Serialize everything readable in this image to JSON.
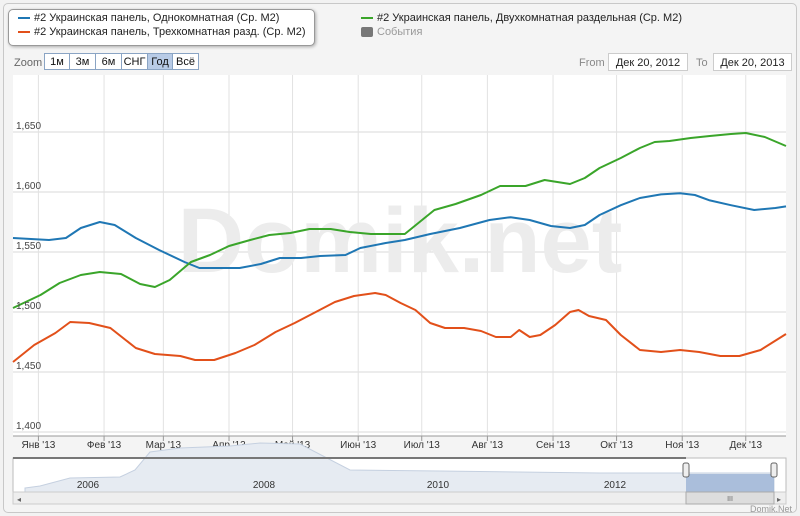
{
  "legend": {
    "series": [
      {
        "label": "#2 Украинская панель, Однокомнатная (Ср. М2)",
        "color": "#1f77b4"
      },
      {
        "label": "#2 Украинская панель, Двухкомнатная раздельная (Ср. М2)",
        "color": "#3aa52a"
      },
      {
        "label": "#2 Украинская панель, Трехкомнатная разд. (Ср. М2)",
        "color": "#e2501a"
      }
    ],
    "events_label": "События"
  },
  "zoom": {
    "label": "Zoom",
    "buttons": [
      "1м",
      "3м",
      "6м",
      "СНГ",
      "Год",
      "Всё"
    ],
    "active": "Год"
  },
  "range": {
    "from_label": "From",
    "from": "Дек 20, 2012",
    "to_label": "To",
    "to": "Дек 20, 2013"
  },
  "watermark": "Domik.net",
  "credit": "Domik.Net",
  "navigator": {
    "year_labels": [
      "2006",
      "2008",
      "2010",
      "2012"
    ]
  },
  "chart_data": {
    "type": "line",
    "x_unit": "days since Дек 20, 2012",
    "xlim": [
      0,
      365
    ],
    "ylim": [
      1400,
      1700
    ],
    "yticks": [
      1400,
      1450,
      1500,
      1550,
      1600,
      1650
    ],
    "ytick_labels": [
      "1,400",
      "1,450",
      "1,500",
      "1,550",
      "1,600",
      "1,650"
    ],
    "xticks": [
      12,
      43,
      71,
      102,
      132,
      163,
      193,
      224,
      255,
      285,
      316,
      346
    ],
    "xtick_labels": [
      "Янв '13",
      "Фев '13",
      "Мар '13",
      "Апр '13",
      "Май '13",
      "Июн '13",
      "Июл '13",
      "Авг '13",
      "Сен '13",
      "Окт '13",
      "Ноя '13",
      "Дек '13"
    ],
    "grid": true,
    "series": [
      {
        "name": "#2 Украинская панель, Однокомнатная (Ср. М2)",
        "color": "#1f77b4",
        "x": [
          0,
          17,
          25,
          32,
          41,
          48,
          58,
          69,
          81,
          88,
          95,
          107,
          117,
          126,
          136,
          145,
          157,
          164,
          176,
          185,
          197,
          211,
          225,
          235,
          244,
          254,
          263,
          270,
          277,
          287,
          296,
          306,
          315,
          322,
          329,
          339,
          350,
          360,
          365
        ],
        "y": [
          1561.7,
          1560,
          1561.7,
          1570,
          1575,
          1572.5,
          1561.7,
          1551.7,
          1541.7,
          1536.7,
          1536.7,
          1536.7,
          1540,
          1545,
          1545,
          1546.7,
          1547.5,
          1553.3,
          1557.5,
          1560,
          1565,
          1570,
          1576.7,
          1579,
          1576.7,
          1571.7,
          1570,
          1572.5,
          1580.8,
          1589,
          1595,
          1598,
          1599,
          1597.5,
          1593,
          1589,
          1585,
          1586.7,
          1588
        ]
      },
      {
        "name": "#2 Украинская панель, Двухкомнатная раздельная (Ср. М2)",
        "color": "#3aa52a",
        "x": [
          0,
          13,
          22,
          32,
          41,
          51,
          60,
          67,
          74,
          84,
          93,
          102,
          112,
          121,
          131,
          140,
          150,
          159,
          169,
          178,
          185,
          192,
          199,
          209,
          221,
          230,
          242,
          251,
          263,
          270,
          277,
          287,
          296,
          303,
          310,
          320,
          329,
          339,
          346,
          355,
          365
        ],
        "y": [
          1503.3,
          1514.2,
          1524.2,
          1530.8,
          1533.3,
          1531.7,
          1523.3,
          1520.8,
          1526.7,
          1541.7,
          1547.5,
          1555,
          1560,
          1564.2,
          1565.8,
          1569.2,
          1569.2,
          1566.7,
          1565,
          1565,
          1565,
          1575,
          1585,
          1590,
          1597.5,
          1605,
          1605,
          1610,
          1606.7,
          1611.7,
          1620,
          1628.3,
          1636.7,
          1641.7,
          1642.5,
          1645,
          1646.7,
          1648.3,
          1649.2,
          1645.8,
          1638.3
        ]
      },
      {
        "name": "#2 Украинская панель, Трехкомнатная разд. (Ср. М2)",
        "color": "#e2501a",
        "x": [
          0,
          10,
          20,
          27,
          36,
          46,
          58,
          67,
          79,
          86,
          95,
          105,
          114,
          124,
          133,
          143,
          152,
          161,
          171,
          176,
          183,
          190,
          197,
          204,
          213,
          221,
          228,
          235,
          239,
          244,
          249,
          256,
          263,
          267,
          272,
          280,
          287,
          296,
          306,
          315,
          324,
          334,
          343,
          353,
          365
        ],
        "y": [
          1458.3,
          1472.5,
          1482.5,
          1491.7,
          1490.8,
          1486.7,
          1470,
          1465,
          1463.3,
          1460,
          1460,
          1465.8,
          1472.5,
          1483.3,
          1490.8,
          1500,
          1508.3,
          1513.3,
          1515.8,
          1514.2,
          1507.5,
          1501.7,
          1490.8,
          1486.7,
          1486.7,
          1484.2,
          1479.2,
          1479.2,
          1485,
          1479.2,
          1480.8,
          1489.2,
          1500,
          1501.7,
          1496.7,
          1493.3,
          1480.8,
          1468.3,
          1466.7,
          1468.3,
          1466.7,
          1463.3,
          1463.3,
          1468.3,
          1481.7
        ]
      }
    ]
  }
}
